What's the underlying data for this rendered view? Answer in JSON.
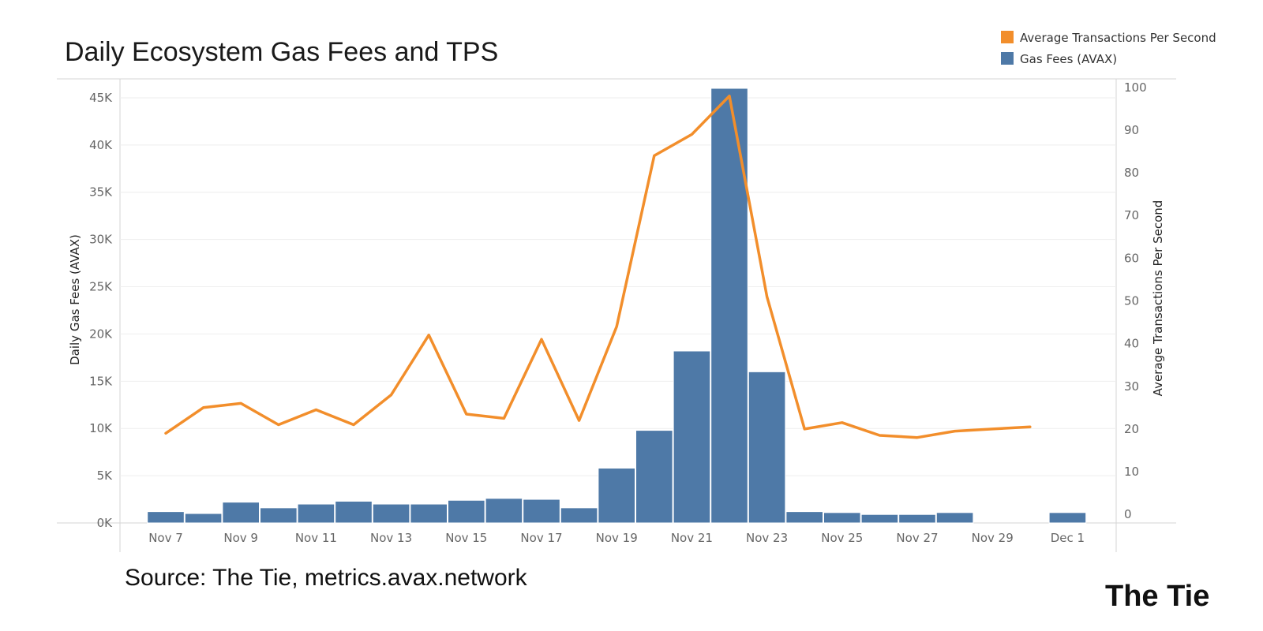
{
  "chart_data": {
    "type": "bar",
    "title": "Daily Ecosystem Gas Fees and TPS",
    "source": "Source: The Tie, metrics.avax.network",
    "brand": "The Tie",
    "legend": [
      {
        "label": "Average Transactions Per Second",
        "color": "#f28e2b"
      },
      {
        "label": "Gas Fees (AVAX)",
        "color": "#4e79a7"
      }
    ],
    "ylabel": "Daily Gas Fees (AVAX)",
    "y2label": "Average Transactions Per Second",
    "ylim": [
      0,
      47000
    ],
    "y2lim": [
      -2,
      102
    ],
    "yticks": [
      "0K",
      "5K",
      "10K",
      "15K",
      "20K",
      "25K",
      "30K",
      "35K",
      "40K",
      "45K"
    ],
    "y2ticks": [
      "0",
      "10",
      "20",
      "30",
      "40",
      "50",
      "60",
      "70",
      "80",
      "90",
      "100"
    ],
    "x_labels": [
      "Nov 7",
      "Nov 9",
      "Nov 11",
      "Nov 13",
      "Nov 15",
      "Nov 17",
      "Nov 19",
      "Nov 21",
      "Nov 23",
      "Nov 25",
      "Nov 27",
      "Nov 29",
      "Dec 1"
    ],
    "categories": [
      "Nov 7",
      "Nov 8",
      "Nov 9",
      "Nov 10",
      "Nov 11",
      "Nov 12",
      "Nov 13",
      "Nov 14",
      "Nov 15",
      "Nov 16",
      "Nov 17",
      "Nov 18",
      "Nov 19",
      "Nov 20",
      "Nov 21",
      "Nov 22",
      "Nov 23",
      "Nov 24",
      "Nov 25",
      "Nov 26",
      "Nov 27",
      "Nov 28",
      "Nov 29",
      "Nov 30",
      "Dec 1"
    ],
    "series": [
      {
        "name": "Gas Fees (AVAX)",
        "type": "bar",
        "axis": "left",
        "color": "#4e79a7",
        "values": [
          1200,
          1000,
          2200,
          1600,
          2000,
          2300,
          2000,
          2000,
          2400,
          2600,
          2500,
          1600,
          5800,
          9800,
          18200,
          46000,
          16000,
          1200,
          1100,
          900,
          900,
          1100,
          null,
          null,
          1100
        ]
      },
      {
        "name": "Average Transactions Per Second",
        "type": "line",
        "axis": "right",
        "color": "#f28e2b",
        "values": [
          19,
          25,
          26,
          21,
          24.5,
          21,
          28,
          42,
          23.5,
          22.5,
          41,
          22,
          44,
          84,
          89,
          98,
          51,
          20,
          21.5,
          18.5,
          18,
          19.5,
          20,
          20.5,
          null
        ]
      }
    ]
  }
}
